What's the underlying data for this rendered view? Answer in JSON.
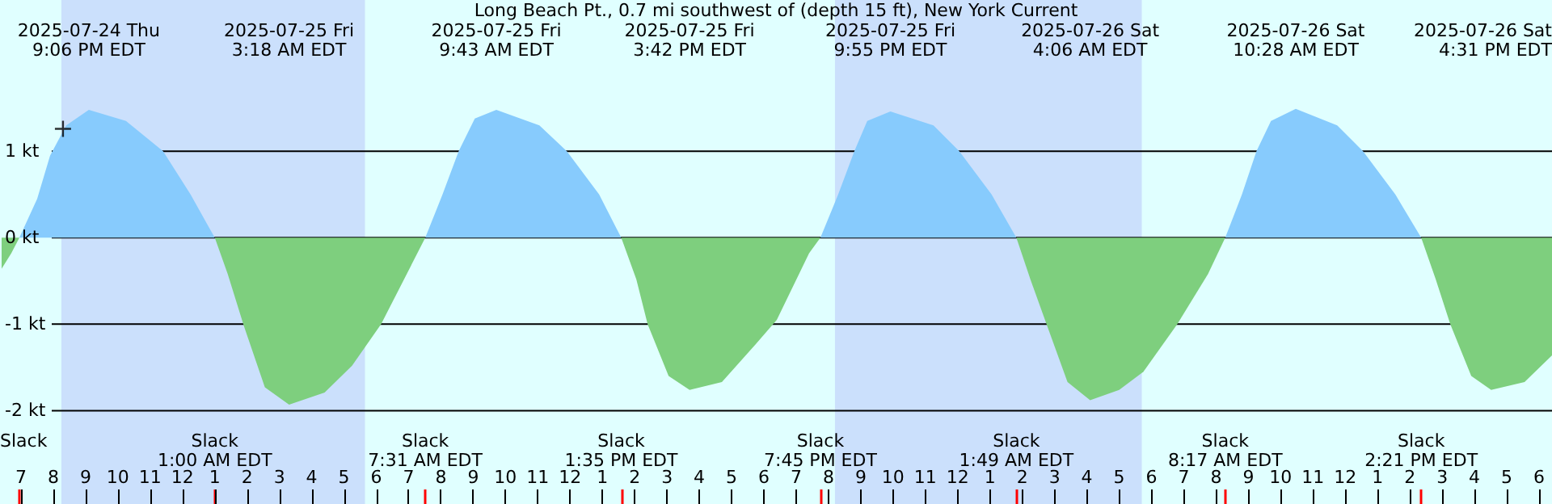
{
  "chart_data": {
    "type": "area",
    "title": "Long Beach Pt., 0.7 mi southwest of (depth 15 ft), New York Current",
    "xlim": [
      "2025-07-24T18:24",
      "2025-07-26T18:24"
    ],
    "ylim": [
      -3.08,
      2.75
    ],
    "xticks": [
      {
        "value": "2025-07-24T19:00",
        "label": "7"
      },
      {
        "value": "2025-07-24T20:00",
        "label": "8"
      },
      {
        "value": "2025-07-24T21:00",
        "label": "9"
      },
      {
        "value": "2025-07-24T22:00",
        "label": "10"
      },
      {
        "value": "2025-07-24T23:00",
        "label": "11"
      },
      {
        "value": "2025-07-25T00:00",
        "label": "12"
      },
      {
        "value": "2025-07-25T01:00",
        "label": "1"
      },
      {
        "value": "2025-07-25T02:00",
        "label": "2"
      },
      {
        "value": "2025-07-25T03:00",
        "label": "3"
      },
      {
        "value": "2025-07-25T04:00",
        "label": "4"
      },
      {
        "value": "2025-07-25T05:00",
        "label": "5"
      },
      {
        "value": "2025-07-25T06:00",
        "label": "6"
      },
      {
        "value": "2025-07-25T07:00",
        "label": "7"
      },
      {
        "value": "2025-07-25T08:00",
        "label": "8"
      },
      {
        "value": "2025-07-25T09:00",
        "label": "9"
      },
      {
        "value": "2025-07-25T10:00",
        "label": "10"
      },
      {
        "value": "2025-07-25T11:00",
        "label": "11"
      },
      {
        "value": "2025-07-25T12:00",
        "label": "12"
      },
      {
        "value": "2025-07-25T13:00",
        "label": "1"
      },
      {
        "value": "2025-07-25T14:00",
        "label": "2"
      },
      {
        "value": "2025-07-25T15:00",
        "label": "3"
      },
      {
        "value": "2025-07-25T16:00",
        "label": "4"
      },
      {
        "value": "2025-07-25T17:00",
        "label": "5"
      },
      {
        "value": "2025-07-25T18:00",
        "label": "6"
      },
      {
        "value": "2025-07-25T19:00",
        "label": "7"
      },
      {
        "value": "2025-07-25T20:00",
        "label": "8"
      },
      {
        "value": "2025-07-25T21:00",
        "label": "9"
      },
      {
        "value": "2025-07-25T22:00",
        "label": "10"
      },
      {
        "value": "2025-07-25T23:00",
        "label": "11"
      },
      {
        "value": "2025-07-26T00:00",
        "label": "12"
      },
      {
        "value": "2025-07-26T01:00",
        "label": "1"
      },
      {
        "value": "2025-07-26T02:00",
        "label": "2"
      },
      {
        "value": "2025-07-26T03:00",
        "label": "3"
      },
      {
        "value": "2025-07-26T04:00",
        "label": "4"
      },
      {
        "value": "2025-07-26T05:00",
        "label": "5"
      },
      {
        "value": "2025-07-26T06:00",
        "label": "6"
      },
      {
        "value": "2025-07-26T07:00",
        "label": "7"
      },
      {
        "value": "2025-07-26T08:00",
        "label": "8"
      },
      {
        "value": "2025-07-26T09:00",
        "label": "9"
      },
      {
        "value": "2025-07-26T10:00",
        "label": "10"
      },
      {
        "value": "2025-07-26T11:00",
        "label": "11"
      },
      {
        "value": "2025-07-26T12:00",
        "label": "12"
      },
      {
        "value": "2025-07-26T13:00",
        "label": "1"
      },
      {
        "value": "2025-07-26T14:00",
        "label": "2"
      },
      {
        "value": "2025-07-26T15:00",
        "label": "3"
      },
      {
        "value": "2025-07-26T16:00",
        "label": "4"
      },
      {
        "value": "2025-07-26T17:00",
        "label": "5"
      },
      {
        "value": "2025-07-26T18:00",
        "label": "6"
      }
    ],
    "yticks": [
      {
        "value": 1,
        "label": "1 kt"
      },
      {
        "value": 0,
        "label": "0 kt"
      },
      {
        "value": -1,
        "label": "-1 kt"
      },
      {
        "value": -2,
        "label": "-2 kt"
      }
    ],
    "grid": "y",
    "series": [
      {
        "color": "#7ecf7e",
        "x": [
          "2025-07-24T18:24",
          "2025-07-24T18:42",
          "2025-07-24T18:57"
        ],
        "values": [
          -0.36,
          -0.18,
          0
        ]
      },
      {
        "color": "#87cbfd",
        "x": [
          "2025-07-24T18:57",
          "2025-07-24T19:30",
          "2025-07-24T19:54",
          "2025-07-24T20:24",
          "2025-07-24T21:06",
          "2025-07-24T22:15",
          "2025-07-24T23:24",
          "2025-07-25T00:15",
          "2025-07-25T01:00"
        ],
        "values": [
          0,
          0.45,
          0.95,
          1.3,
          1.48,
          1.35,
          1.0,
          0.5,
          0
        ]
      },
      {
        "color": "#7ecf7e",
        "x": [
          "2025-07-25T01:00",
          "2025-07-25T01:24",
          "2025-07-25T01:54",
          "2025-07-25T02:33",
          "2025-07-25T03:18",
          "2025-07-25T04:24",
          "2025-07-25T05:15",
          "2025-07-25T06:09",
          "2025-07-25T07:31"
        ],
        "values": [
          0,
          -0.42,
          -1.02,
          -1.73,
          -1.93,
          -1.79,
          -1.48,
          -1.0,
          0
        ]
      },
      {
        "color": "#87cbfd",
        "x": [
          "2025-07-25T07:31",
          "2025-07-25T08:03",
          "2025-07-25T08:33",
          "2025-07-25T09:03",
          "2025-07-25T09:43",
          "2025-07-25T11:03",
          "2025-07-25T11:54",
          "2025-07-25T12:54",
          "2025-07-25T13:35"
        ],
        "values": [
          0,
          0.5,
          1.0,
          1.38,
          1.48,
          1.3,
          1.0,
          0.5,
          0
        ]
      },
      {
        "color": "#7ecf7e",
        "x": [
          "2025-07-25T13:35",
          "2025-07-25T14:03",
          "2025-07-25T14:24",
          "2025-07-25T15:03",
          "2025-07-25T15:42",
          "2025-07-25T16:42",
          "2025-07-25T17:45",
          "2025-07-25T18:24",
          "2025-07-25T19:24",
          "2025-07-25T19:45"
        ],
        "values": [
          0,
          -0.48,
          -1.0,
          -1.6,
          -1.76,
          -1.67,
          -1.23,
          -0.95,
          -0.18,
          0
        ]
      },
      {
        "color": "#87cbfd",
        "x": [
          "2025-07-25T19:45",
          "2025-07-25T20:18",
          "2025-07-25T20:48",
          "2025-07-25T21:12",
          "2025-07-25T21:55",
          "2025-07-25T23:15",
          "2025-07-26T00:03",
          "2025-07-26T01:03",
          "2025-07-26T01:49"
        ],
        "values": [
          0,
          0.5,
          1.0,
          1.35,
          1.46,
          1.3,
          1.0,
          0.5,
          0
        ]
      },
      {
        "color": "#7ecf7e",
        "x": [
          "2025-07-26T01:49",
          "2025-07-26T02:15",
          "2025-07-26T02:45",
          "2025-07-26T03:24",
          "2025-07-26T04:06",
          "2025-07-26T05:00",
          "2025-07-26T05:45",
          "2025-07-26T06:48",
          "2025-07-26T07:45",
          "2025-07-26T08:17"
        ],
        "values": [
          0,
          -0.48,
          -1.0,
          -1.67,
          -1.88,
          -1.76,
          -1.55,
          -1.0,
          -0.42,
          0
        ]
      },
      {
        "color": "#87cbfd",
        "x": [
          "2025-07-26T08:17",
          "2025-07-26T08:48",
          "2025-07-26T09:15",
          "2025-07-26T09:42",
          "2025-07-26T10:28",
          "2025-07-26T11:45",
          "2025-07-26T12:33",
          "2025-07-26T13:33",
          "2025-07-26T14:21"
        ],
        "values": [
          0,
          0.5,
          1.0,
          1.35,
          1.49,
          1.3,
          1.0,
          0.5,
          0
        ]
      },
      {
        "color": "#7ecf7e",
        "x": [
          "2025-07-26T14:21",
          "2025-07-26T14:48",
          "2025-07-26T15:15",
          "2025-07-26T15:54",
          "2025-07-26T16:31",
          "2025-07-26T17:33",
          "2025-07-26T18:24"
        ],
        "values": [
          0,
          -0.48,
          -1.0,
          -1.6,
          -1.76,
          -1.67,
          -1.36
        ]
      },
      {
        "type": "scatter",
        "marker": "cross",
        "color": "#000000",
        "x": [
          "2025-07-24T20:18"
        ],
        "values": [
          1.26
        ]
      }
    ],
    "bands": [
      {
        "axis": "x",
        "from": "2025-07-24T20:15",
        "to": "2025-07-25T05:39",
        "color": "#cbe0fc"
      },
      {
        "axis": "x",
        "from": "2025-07-25T20:12",
        "to": "2025-07-26T05:42",
        "color": "#cbe0fc"
      }
    ],
    "annotations": [
      "Slack",
      "2025-07-24 Thu\n9:06 PM EDT",
      "Slack\n1:00 AM EDT",
      "2025-07-25 Fri\n3:18 AM EDT",
      "Slack\n7:31 AM EDT",
      "2025-07-25 Fri\n9:43 AM EDT",
      "Slack\n1:35 PM EDT",
      "2025-07-25 Fri\n3:42 PM EDT",
      "Slack\n7:45 PM EDT",
      "2025-07-25 Fri\n9:55 PM EDT",
      "Slack\n1:49 AM EDT",
      "2025-07-26 Sat\n4:06 AM EDT",
      "Slack\n8:17 AM EDT",
      "2025-07-26 Sat\n10:28 AM EDT",
      "Slack\n2:21 PM EDT",
      "2025-07-26 Sat\n4:31 PM EDT"
    ]
  }
}
